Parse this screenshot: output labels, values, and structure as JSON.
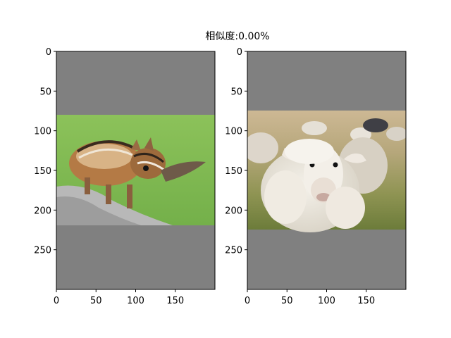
{
  "title": "相似度:0.00%",
  "chart_data": [
    {
      "type": "image",
      "content": "photo of a chipmunk on a rock, letterboxed with gray padding",
      "xlim": [
        0,
        200
      ],
      "ylim": [
        300,
        0
      ],
      "xticks": [
        0,
        50,
        100,
        150
      ],
      "yticks": [
        0,
        50,
        100,
        150,
        200,
        250
      ],
      "image_extent_y": [
        80,
        219
      ],
      "padding_color": "#808080"
    },
    {
      "type": "image",
      "content": "photo of a sheep in a grassy field with other sheep behind, letterboxed with gray padding",
      "xlim": [
        0,
        200
      ],
      "ylim": [
        300,
        0
      ],
      "xticks": [
        0,
        50,
        100,
        150
      ],
      "yticks": [
        0,
        50,
        100,
        150,
        200,
        250
      ],
      "image_extent_y": [
        74,
        224
      ],
      "padding_color": "#808080"
    }
  ]
}
